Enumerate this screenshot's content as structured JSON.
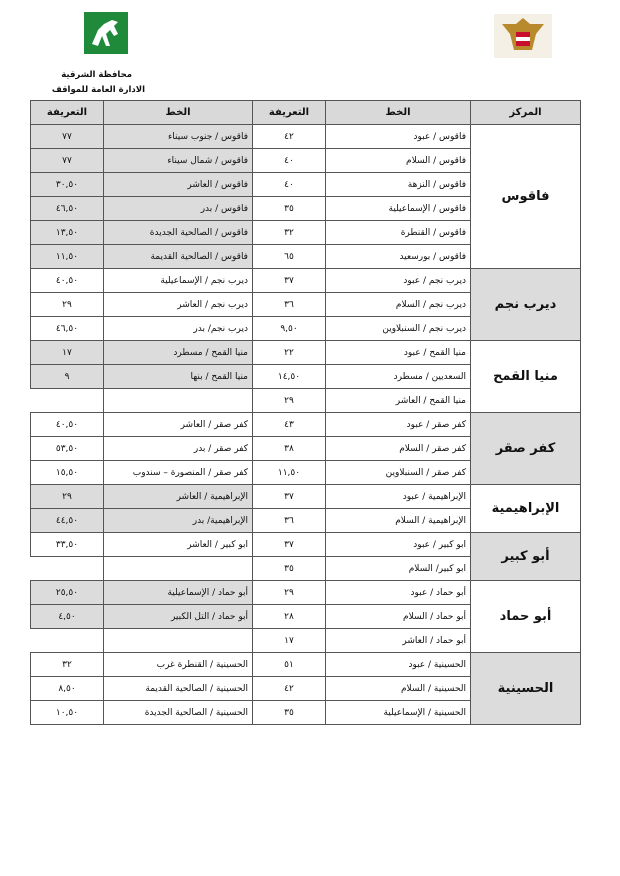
{
  "header": {
    "governorate": "محافظة الشرقية",
    "department": "الادارة العامة للمواقف"
  },
  "table": {
    "columns": [
      "المركز",
      "الخط",
      "التعريفة",
      "الخط",
      "التعريفة"
    ],
    "groups": [
      {
        "center": "فاقوس",
        "rows": [
          [
            "فاقوس / عبود",
            "٤٢",
            "فاقوس / جنوب سيناء",
            "٧٧"
          ],
          [
            "فاقوس / السلام",
            "٤٠",
            "فاقوس / شمال سيناء",
            "٧٧"
          ],
          [
            "فاقوس / النزهة",
            "٤٠",
            "فاقوس / العاشر",
            "٣٠,٥٠"
          ],
          [
            "فاقوس / الإسماعيلية",
            "٣٥",
            "فاقوس / بدر",
            "٤٦,٥٠"
          ],
          [
            "فاقوس / القنطرة",
            "٣٢",
            "فاقوس / الصالحية الجديدة",
            "١٣,٥٠"
          ],
          [
            "فاقوس / بورسعيد",
            "٦٥",
            "فاقوس / الصالحية القديمة",
            "١١,٥٠"
          ]
        ]
      },
      {
        "center": "ديرب نجم",
        "rows": [
          [
            "ديرب نجم / عبود",
            "٣٧",
            "ديرب نجم / الإسماعيلية",
            "٤٠,٥٠"
          ],
          [
            "ديرب نجم / السلام",
            "٣٦",
            "ديرب نجم / العاشر",
            "٢٩"
          ],
          [
            "ديرب نجم / السنبلاوين",
            "٩,٥٠",
            "ديرب نجم/ بدر",
            "٤٦,٥٠"
          ]
        ]
      },
      {
        "center": "منيا القمح",
        "rows": [
          [
            "منيا القمح / عبود",
            "٢٢",
            "منيا القمح / مسطرد",
            "١٧"
          ],
          [
            "السعديين / مسطرد",
            "١٤,٥٠",
            "منيا القمح / بنها",
            "٩"
          ],
          [
            "منيا القمح / العاشر",
            "٢٩"
          ]
        ]
      },
      {
        "center": "كفر صقر",
        "rows": [
          [
            "كفر صقر / عبود",
            "٤٣",
            "كفر صقر / العاشر",
            "٤٠,٥٠"
          ],
          [
            "كفر صقر / السلام",
            "٣٨",
            "كفر صقر / بدر",
            "٥٣,٥٠"
          ],
          [
            "كفر صقر / السنبلاوين",
            "١١,٥٠",
            "كفر صقر / المنصورة – سندوب",
            "١٥,٥٠"
          ]
        ]
      },
      {
        "center": "الإبراهيمية",
        "rows": [
          [
            "الإبراهيمية / عبود",
            "٣٧",
            "الإبراهيمية / العاشر",
            "٢٩"
          ],
          [
            "الإبراهيمية / السلام",
            "٣٦",
            "الإبراهيمية/ بدر",
            "٤٤,٥٠"
          ]
        ]
      },
      {
        "center": "أبو كبير",
        "rows": [
          [
            "ابو كبير / عبود",
            "٣٧",
            "ابو كبير / العاشر",
            "٣٣,٥٠"
          ],
          [
            "ابو كبير/ السلام",
            "٣٥"
          ]
        ]
      },
      {
        "center": "أبو حماد",
        "rows": [
          [
            "أبو حماد / عبود",
            "٢٩",
            "أبو حماد / الإسماعيلية",
            "٢٥,٥٠"
          ],
          [
            "أبو حماد / السلام",
            "٢٨",
            "أبو حماد / التل الكبير",
            "٤,٥٠"
          ],
          [
            "أبو حماد / العاشر",
            "١٧"
          ]
        ]
      },
      {
        "center": "الحسينية",
        "rows": [
          [
            "الحسينية / عبود",
            "٥١",
            "الحسينية / القنطرة غرب",
            "٣٢"
          ],
          [
            "الحسينية / السلام",
            "٤٢",
            "الحسينية / الصالحية القديمة",
            "٨,٥٠"
          ],
          [
            "الحسينية / الإسماعيلية",
            "٣٥",
            "الحسينية / الصالحية الجديدة",
            "١٠,٥٠"
          ]
        ]
      }
    ]
  }
}
